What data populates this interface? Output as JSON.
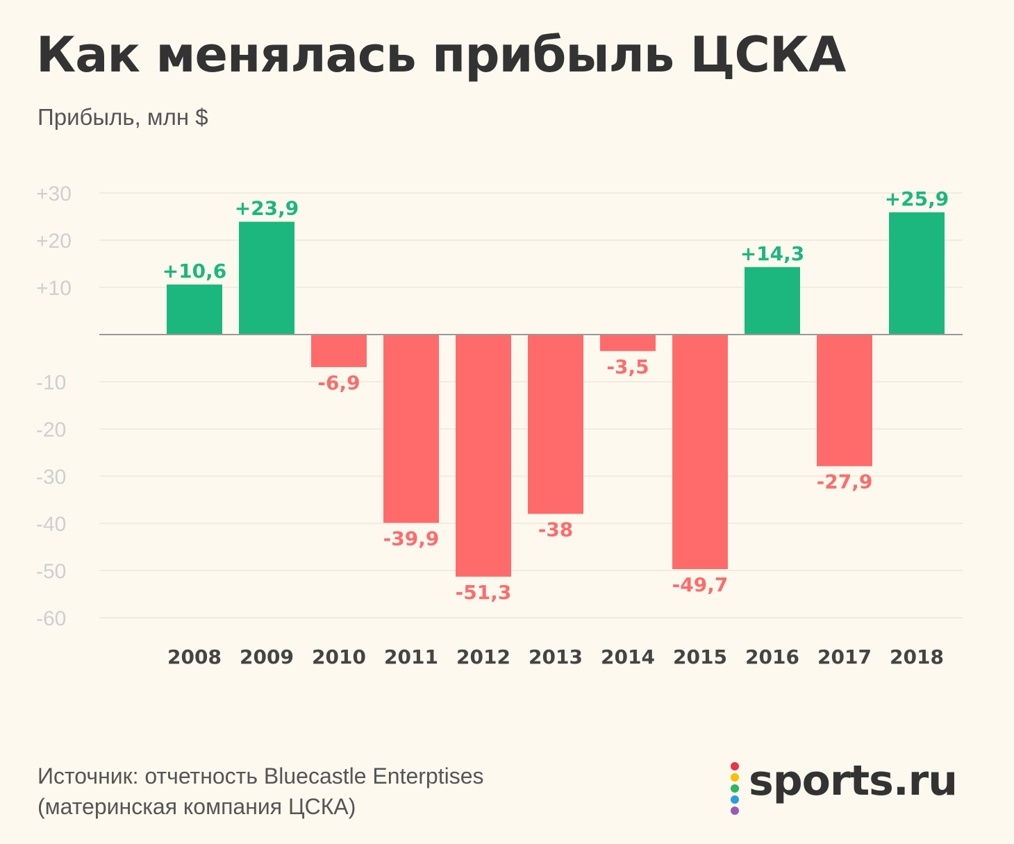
{
  "title": "Как менялась прибыль ЦСКА",
  "subtitle": "Прибыль, млн $",
  "source_line1": "Источник: отчетность Bluecastle Enterptises",
  "source_line2": "(материнская компания ЦСКА)",
  "logo_text": "sports.ru",
  "logo_dot_colors": [
    "#e8334a",
    "#f6c000",
    "#2db563",
    "#2b9be3",
    "#9b59b6"
  ],
  "colors": {
    "positive": "#1bb77e",
    "negative": "#ff6b6b",
    "axis_text": "#cfcfcf",
    "category_text": "#444444",
    "grid": "#ede7db",
    "zero_line": "#999999"
  },
  "chart_data": {
    "type": "bar",
    "categories": [
      "2008",
      "2009",
      "2010",
      "2011",
      "2012",
      "2013",
      "2014",
      "2015",
      "2016",
      "2017",
      "2018"
    ],
    "values": [
      10.6,
      23.9,
      -6.9,
      -39.9,
      -51.3,
      -38,
      -3.5,
      -49.7,
      14.3,
      -27.9,
      25.9
    ],
    "data_labels": [
      "+10,6",
      "+23,9",
      "-6,9",
      "-39,9",
      "-51,3",
      "-38",
      "-3,5",
      "-49,7",
      "+14,3",
      "-27,9",
      "+25,9"
    ],
    "yticks": [
      30,
      20,
      10,
      -10,
      -20,
      -30,
      -40,
      -50,
      -60
    ],
    "ytick_labels": [
      "+30",
      "+20",
      "+10",
      "-10",
      "-20",
      "-30",
      "-40",
      "-50",
      "-60"
    ],
    "ylim": [
      -60,
      30
    ],
    "ylabel": "Прибыль, млн $",
    "grid": true
  }
}
